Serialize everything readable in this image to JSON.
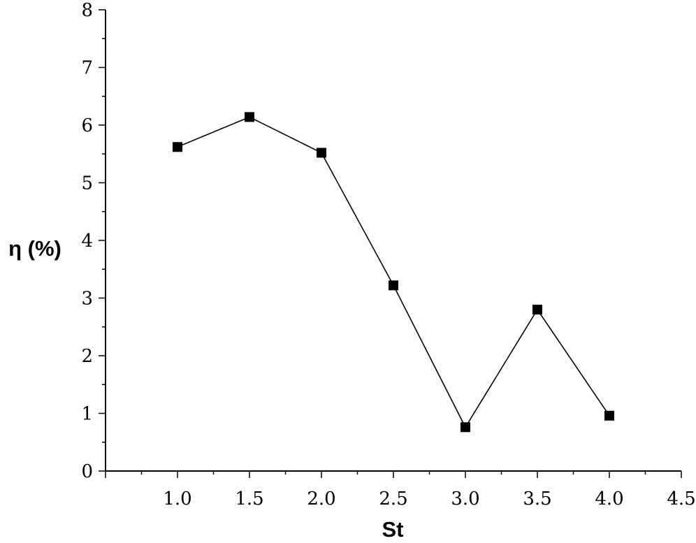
{
  "chart_data": {
    "type": "line",
    "title": "",
    "xlabel": "St",
    "ylabel": "η (%)",
    "xlim": [
      0.5,
      4.5
    ],
    "ylim": [
      0,
      8
    ],
    "x_ticks": [
      "1.0",
      "1.5",
      "2.0",
      "2.5",
      "3.0",
      "3.5",
      "4.0",
      "4.5"
    ],
    "y_ticks": [
      "0",
      "1",
      "2",
      "3",
      "4",
      "5",
      "6",
      "7",
      "8"
    ],
    "grid": false,
    "legend": "none",
    "series": [
      {
        "marker": "square",
        "color": "#000000",
        "x": [
          1.0,
          1.5,
          2.0,
          2.5,
          3.0,
          3.5,
          4.0
        ],
        "y": [
          5.62,
          6.14,
          5.52,
          3.22,
          0.76,
          2.8,
          0.96
        ]
      }
    ]
  }
}
